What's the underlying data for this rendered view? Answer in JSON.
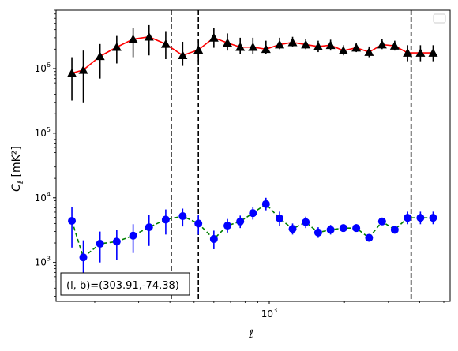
{
  "chart_data": {
    "type": "scatter",
    "xscale": "log",
    "yscale": "log",
    "xlim": [
      140,
      5300
    ],
    "ylim": [
      250,
      8000000
    ],
    "xlabel_tex": "ℓ",
    "ylabel_main": "C",
    "ylabel_sub": "ℓ",
    "ylabel_unit": "[mK²]",
    "x_tick_major": [
      {
        "value": 1000,
        "base": "10",
        "exp": "3"
      }
    ],
    "y_tick_major": [
      {
        "value": 1000,
        "base": "10",
        "exp": "3"
      },
      {
        "value": 10000,
        "base": "10",
        "exp": "4"
      },
      {
        "value": 100000,
        "base": "10",
        "exp": "5"
      },
      {
        "value": 1000000,
        "base": "10",
        "exp": "6"
      }
    ],
    "vlines": [
      405,
      520,
      3700
    ],
    "annotation": "(l, b)=(303.91,-74.38)",
    "series": [
      {
        "marker": "triangle",
        "marker_color": "#000000",
        "line_color": "#ff0000",
        "line_style": "solid",
        "errbar_color": "#000000",
        "x": [
          162,
          180,
          210,
          245,
          285,
          330,
          385,
          450,
          520,
          600,
          680,
          765,
          860,
          970,
          1100,
          1240,
          1400,
          1570,
          1760,
          1980,
          2230,
          2510,
          2830,
          3180,
          3580,
          4030,
          4530
        ],
        "y": [
          850000,
          950000,
          1550000,
          2150000,
          2850000,
          3100000,
          2400000,
          1600000,
          1950000,
          3000000,
          2500000,
          2150000,
          2150000,
          2000000,
          2350000,
          2550000,
          2350000,
          2200000,
          2300000,
          1900000,
          2100000,
          1800000,
          2350000,
          2250000,
          1750000,
          1750000,
          1750000
        ],
        "yerr_low": [
          320000,
          300000,
          700000,
          1200000,
          1500000,
          1600000,
          1400000,
          1100000,
          1300000,
          2100000,
          1900000,
          1700000,
          1700000,
          1700000,
          2000000,
          2200000,
          2000000,
          1800000,
          1900000,
          1600000,
          1800000,
          1500000,
          2000000,
          1900000,
          1300000,
          1300000,
          1300000
        ],
        "yerr_high": [
          1500000,
          1900000,
          2400000,
          3200000,
          4300000,
          4700000,
          3800000,
          2600000,
          2800000,
          4200000,
          3500000,
          3000000,
          3000000,
          2700000,
          3000000,
          3100000,
          2900000,
          2700000,
          2800000,
          2300000,
          2500000,
          2200000,
          2900000,
          2700000,
          2300000,
          2300000,
          2300000
        ]
      },
      {
        "marker": "circle",
        "marker_color": "#0000ff",
        "line_color": "#008000",
        "line_style": "dashed",
        "errbar_color": "#0000ff",
        "x": [
          162,
          180,
          210,
          245,
          285,
          330,
          385,
          450,
          520,
          600,
          680,
          765,
          860,
          970,
          1100,
          1240,
          1400,
          1570,
          1760,
          1980,
          2230,
          2510,
          2830,
          3180,
          3580,
          4030,
          4530
        ],
        "y": [
          4400,
          1200,
          1950,
          2100,
          2600,
          3500,
          4600,
          5200,
          4000,
          2300,
          3700,
          4300,
          5800,
          8000,
          4800,
          3300,
          4200,
          2900,
          3200,
          3400,
          3400,
          2400,
          4300,
          3200,
          4900,
          4900,
          4900
        ],
        "yerr_low": [
          1700,
          560,
          1000,
          1100,
          1400,
          1800,
          2700,
          3600,
          2700,
          1600,
          2900,
          3400,
          4600,
          6400,
          3700,
          2700,
          3400,
          2400,
          2700,
          3000,
          3000,
          2100,
          3900,
          2800,
          3900,
          3900,
          3900
        ],
        "yerr_high": [
          7200,
          2200,
          3000,
          3200,
          3900,
          5400,
          6600,
          6800,
          5500,
          3100,
          4700,
          5300,
          7100,
          10000,
          6100,
          4000,
          5100,
          3500,
          3800,
          3900,
          3900,
          2700,
          4800,
          3700,
          6100,
          6100,
          6100
        ]
      }
    ]
  }
}
